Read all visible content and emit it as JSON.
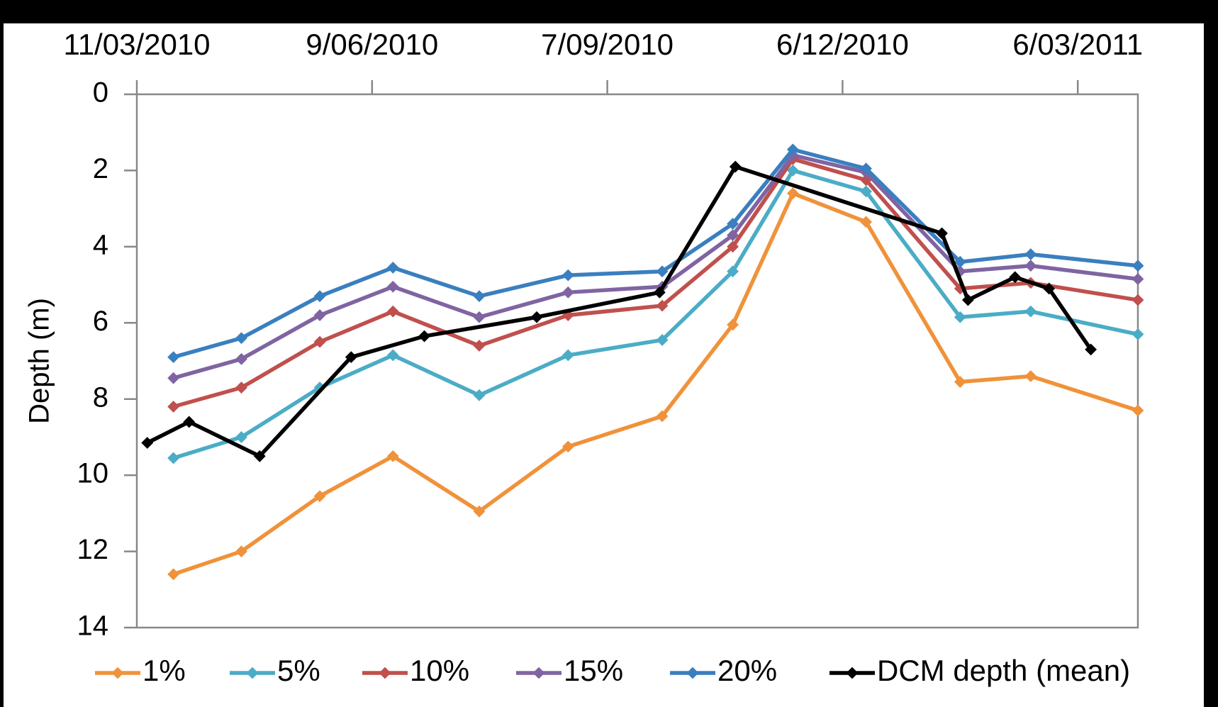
{
  "chart_data": {
    "type": "line",
    "ylabel": "Depth (m)",
    "ylim": [
      0,
      14
    ],
    "yticks": [
      0,
      2,
      4,
      6,
      8,
      10,
      12,
      14
    ],
    "y_reversed": true,
    "xlim": [
      "11/03/2010",
      "29/03/2011"
    ],
    "xticks": [
      "11/03/2010",
      "9/06/2010",
      "7/09/2010",
      "6/12/2010",
      "6/03/2011"
    ],
    "xaxis_position": "top",
    "grid": false,
    "legend": "bottom",
    "series": [
      {
        "name": "1%",
        "color": "#f0923a",
        "x": [
          "25/03/2010",
          "20/04/2010",
          "20/05/2010",
          "17/06/2010",
          "20/07/2010",
          "23/08/2010",
          "28/09/2010",
          "25/10/2010",
          "17/11/2010",
          "15/12/2010",
          "20/01/2011",
          "16/02/2011",
          "29/03/2011"
        ],
        "values": [
          12.6,
          12.0,
          10.55,
          9.5,
          10.95,
          9.25,
          8.45,
          6.05,
          2.6,
          3.35,
          7.55,
          7.4,
          8.3
        ]
      },
      {
        "name": "5%",
        "color": "#4bacc6",
        "x": [
          "25/03/2010",
          "20/04/2010",
          "20/05/2010",
          "17/06/2010",
          "20/07/2010",
          "23/08/2010",
          "28/09/2010",
          "25/10/2010",
          "17/11/2010",
          "15/12/2010",
          "20/01/2011",
          "16/02/2011",
          "29/03/2011"
        ],
        "values": [
          9.55,
          9.0,
          7.7,
          6.85,
          7.9,
          6.85,
          6.45,
          4.65,
          2.0,
          2.55,
          5.85,
          5.7,
          6.3
        ]
      },
      {
        "name": "10%",
        "color": "#c0504d",
        "x": [
          "25/03/2010",
          "20/04/2010",
          "20/05/2010",
          "17/06/2010",
          "20/07/2010",
          "23/08/2010",
          "28/09/2010",
          "25/10/2010",
          "17/11/2010",
          "15/12/2010",
          "20/01/2011",
          "16/02/2011",
          "29/03/2011"
        ],
        "values": [
          8.2,
          7.7,
          6.5,
          5.7,
          6.6,
          5.8,
          5.55,
          4.0,
          1.7,
          2.25,
          5.1,
          4.95,
          5.4
        ]
      },
      {
        "name": "15%",
        "color": "#8064a2",
        "x": [
          "25/03/2010",
          "20/04/2010",
          "20/05/2010",
          "17/06/2010",
          "20/07/2010",
          "23/08/2010",
          "28/09/2010",
          "25/10/2010",
          "17/11/2010",
          "15/12/2010",
          "20/01/2011",
          "16/02/2011",
          "29/03/2011"
        ],
        "values": [
          7.45,
          6.95,
          5.8,
          5.05,
          5.85,
          5.2,
          5.05,
          3.7,
          1.6,
          2.05,
          4.65,
          4.5,
          4.85
        ]
      },
      {
        "name": "20%",
        "color": "#3a7fbf",
        "x": [
          "25/03/2010",
          "20/04/2010",
          "20/05/2010",
          "17/06/2010",
          "20/07/2010",
          "23/08/2010",
          "28/09/2010",
          "25/10/2010",
          "17/11/2010",
          "15/12/2010",
          "20/01/2011",
          "16/02/2011",
          "29/03/2011"
        ],
        "values": [
          6.9,
          6.4,
          5.3,
          4.55,
          5.3,
          4.75,
          4.65,
          3.4,
          1.45,
          1.95,
          4.4,
          4.2,
          4.5
        ]
      },
      {
        "name": "DCM depth (mean)",
        "color": "#000000",
        "x": [
          "15/03/2010",
          "31/03/2010",
          "27/04/2010",
          "1/06/2010",
          "29/06/2010",
          "11/08/2010",
          "27/09/2010",
          "26/10/2010",
          "13/01/2011",
          "23/01/2011",
          "10/02/2011",
          "23/02/2011",
          "11/03/2011"
        ],
        "values": [
          9.15,
          8.6,
          9.5,
          6.9,
          6.35,
          5.85,
          5.2,
          1.9,
          3.65,
          5.4,
          4.8,
          5.1,
          6.7
        ]
      }
    ]
  }
}
